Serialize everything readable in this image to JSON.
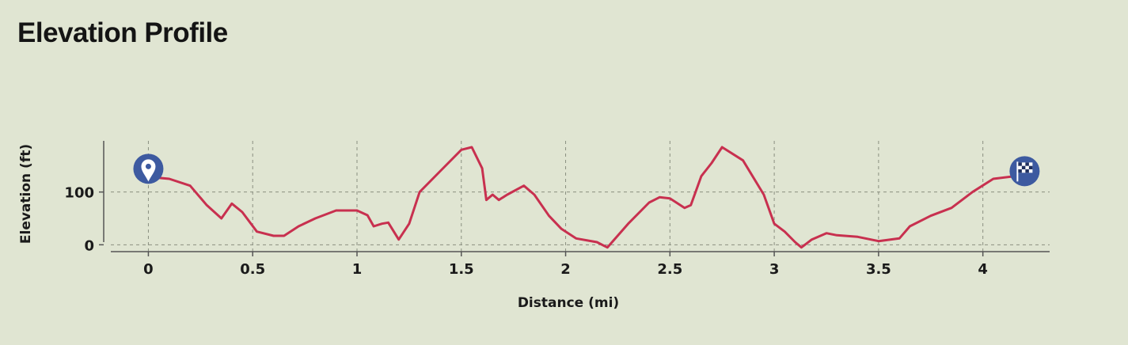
{
  "header": {
    "title": "Elevation Profile"
  },
  "chart_data": {
    "type": "line",
    "title": "",
    "xlabel": "Distance (mi)",
    "ylabel": "Elevation (ft)",
    "xlim": [
      -0.18,
      4.32
    ],
    "ylim": [
      -13,
      197
    ],
    "x_ticks": [
      0,
      0.5,
      1,
      1.5,
      2,
      2.5,
      3,
      3.5,
      4
    ],
    "x_tick_labels": [
      "0",
      "0.5",
      "1",
      "1.5",
      "2",
      "2.5",
      "3",
      "3.5",
      "4"
    ],
    "y_ticks": [
      0,
      100
    ],
    "y_tick_labels": [
      "0",
      "100"
    ],
    "grid": true,
    "line_color": "#c8304f",
    "marker_color": "#3d5aa0",
    "start_marker": {
      "icon": "map-pin-icon",
      "x": 0,
      "y": 138
    },
    "finish_marker": {
      "icon": "checkered-flag-icon",
      "x": 4.2,
      "y": 138
    },
    "series": [
      {
        "x": [
          0.02,
          0.1,
          0.2,
          0.28,
          0.35,
          0.4,
          0.45,
          0.52,
          0.6,
          0.65,
          0.72,
          0.8,
          0.9,
          1.0,
          1.05,
          1.08,
          1.12,
          1.15,
          1.2,
          1.25,
          1.3,
          1.4,
          1.5,
          1.55,
          1.6,
          1.62,
          1.65,
          1.68,
          1.72,
          1.8,
          1.85,
          1.92,
          1.98,
          2.05,
          2.15,
          2.2,
          2.3,
          2.4,
          2.45,
          2.5,
          2.57,
          2.6,
          2.65,
          2.7,
          2.75,
          2.85,
          2.95,
          3.0,
          3.05,
          3.1,
          3.13,
          3.18,
          3.25,
          3.3,
          3.4,
          3.5,
          3.6,
          3.65,
          3.75,
          3.85,
          3.95,
          4.05,
          4.15,
          4.22
        ],
        "y": [
          128,
          125,
          112,
          75,
          50,
          78,
          62,
          25,
          17,
          17,
          35,
          50,
          65,
          65,
          56,
          35,
          40,
          42,
          10,
          40,
          100,
          140,
          180,
          185,
          145,
          85,
          95,
          85,
          95,
          112,
          95,
          55,
          30,
          12,
          5,
          -5,
          40,
          80,
          90,
          88,
          70,
          75,
          130,
          155,
          185,
          160,
          95,
          40,
          25,
          5,
          -5,
          10,
          22,
          18,
          15,
          7,
          12,
          35,
          55,
          70,
          100,
          125,
          130,
          135
        ]
      }
    ]
  }
}
